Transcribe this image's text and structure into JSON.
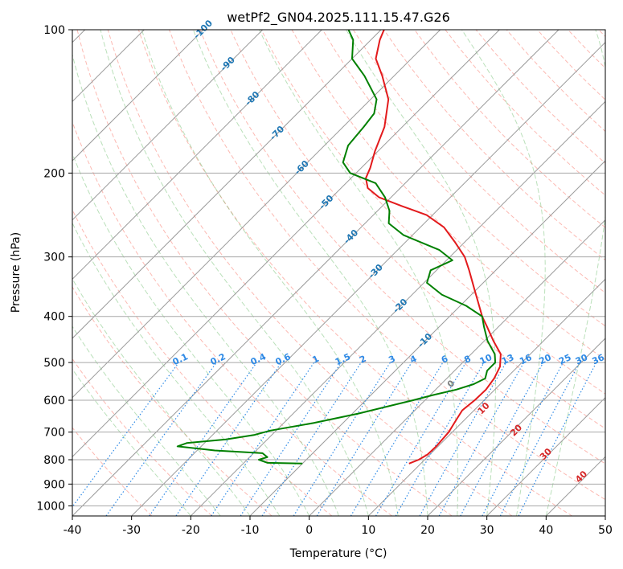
{
  "chart_data": {
    "type": "line",
    "title": "wetPf2_GN04.2025.111.15.47.G26",
    "xlabel": "Temperature (°C)",
    "ylabel": "Pressure (hPa)",
    "xlim": [
      -40,
      50
    ],
    "ylim": [
      1050,
      100
    ],
    "y_scale": "log",
    "skew": 45,
    "grid": true,
    "x_ticks": [
      -40,
      -30,
      -20,
      -10,
      0,
      10,
      20,
      30,
      40,
      50
    ],
    "y_ticks": [
      100,
      200,
      300,
      400,
      500,
      600,
      700,
      800,
      900,
      1000
    ],
    "series": [
      {
        "color": "#e31a1c",
        "points": [
          [
            815,
            8.0
          ],
          [
            800,
            9.0
          ],
          [
            780,
            9.6
          ],
          [
            750,
            9.7
          ],
          [
            700,
            9.4
          ],
          [
            660,
            8.6
          ],
          [
            630,
            8.0
          ],
          [
            600,
            8.4
          ],
          [
            570,
            8.5
          ],
          [
            540,
            8.0
          ],
          [
            510,
            7.0
          ],
          [
            480,
            5.0
          ],
          [
            450,
            1.5
          ],
          [
            420,
            -2.0
          ],
          [
            400,
            -4.5
          ],
          [
            370,
            -8.0
          ],
          [
            350,
            -10.5
          ],
          [
            320,
            -14.5
          ],
          [
            300,
            -17.5
          ],
          [
            280,
            -21.5
          ],
          [
            260,
            -26.0
          ],
          [
            245,
            -31.0
          ],
          [
            235,
            -36.5
          ],
          [
            225,
            -42.0
          ],
          [
            215,
            -45.5
          ],
          [
            205,
            -47.5
          ],
          [
            195,
            -48.5
          ],
          [
            180,
            -50.5
          ],
          [
            160,
            -53.0
          ],
          [
            140,
            -57.0
          ],
          [
            125,
            -62.0
          ],
          [
            115,
            -66.0
          ],
          [
            105,
            -68.5
          ],
          [
            100,
            -69.5
          ]
        ]
      },
      {
        "color": "#008000",
        "points": [
          [
            815,
            -10.0
          ],
          [
            812,
            -16.0
          ],
          [
            800,
            -18.0
          ],
          [
            790,
            -17.0
          ],
          [
            775,
            -18.5
          ],
          [
            765,
            -27.0
          ],
          [
            750,
            -34.0
          ],
          [
            738,
            -33.0
          ],
          [
            725,
            -27.0
          ],
          [
            710,
            -23.0
          ],
          [
            695,
            -21.0
          ],
          [
            670,
            -15.0
          ],
          [
            640,
            -9.0
          ],
          [
            600,
            -2.0
          ],
          [
            585,
            0.5
          ],
          [
            570,
            3.5
          ],
          [
            555,
            5.5
          ],
          [
            540,
            6.5
          ],
          [
            520,
            5.5
          ],
          [
            500,
            5.5
          ],
          [
            480,
            4.0
          ],
          [
            450,
            0.5
          ],
          [
            420,
            -2.5
          ],
          [
            400,
            -4.5
          ],
          [
            380,
            -9.0
          ],
          [
            360,
            -15.0
          ],
          [
            340,
            -19.5
          ],
          [
            320,
            -21.0
          ],
          [
            305,
            -19.0
          ],
          [
            290,
            -23.0
          ],
          [
            270,
            -31.5
          ],
          [
            255,
            -36.0
          ],
          [
            240,
            -38.0
          ],
          [
            225,
            -41.0
          ],
          [
            210,
            -45.0
          ],
          [
            200,
            -51.0
          ],
          [
            190,
            -54.0
          ],
          [
            175,
            -56.0
          ],
          [
            160,
            -56.5
          ],
          [
            150,
            -57.0
          ],
          [
            140,
            -59.0
          ],
          [
            125,
            -65.0
          ],
          [
            115,
            -70.0
          ],
          [
            105,
            -73.0
          ],
          [
            100,
            -75.5
          ]
        ]
      }
    ],
    "isotherm_labels": [
      "-100",
      "-90",
      "-80",
      "-70",
      "-60",
      "-50",
      "-40",
      "-30",
      "-20",
      "-10"
    ],
    "mixing_ratio_labels": [
      "0.1",
      "0.2",
      "0.4",
      "0.6",
      "1",
      "1.5",
      "2",
      "3",
      "4",
      "6",
      "8",
      "10",
      "13",
      "16",
      "20",
      "25",
      "30",
      "36"
    ],
    "moist_adiabat_labels": [
      "0",
      "10",
      "20",
      "30",
      "40"
    ],
    "colors": {
      "isotherm_label": "#1f77b4",
      "mixing_ratio": "#2e8ae6",
      "dry_adiabat": "#fa8072",
      "moist_adiabat": "#66bb66",
      "moist_label": "#d62728",
      "zero_label": "#808080"
    }
  }
}
